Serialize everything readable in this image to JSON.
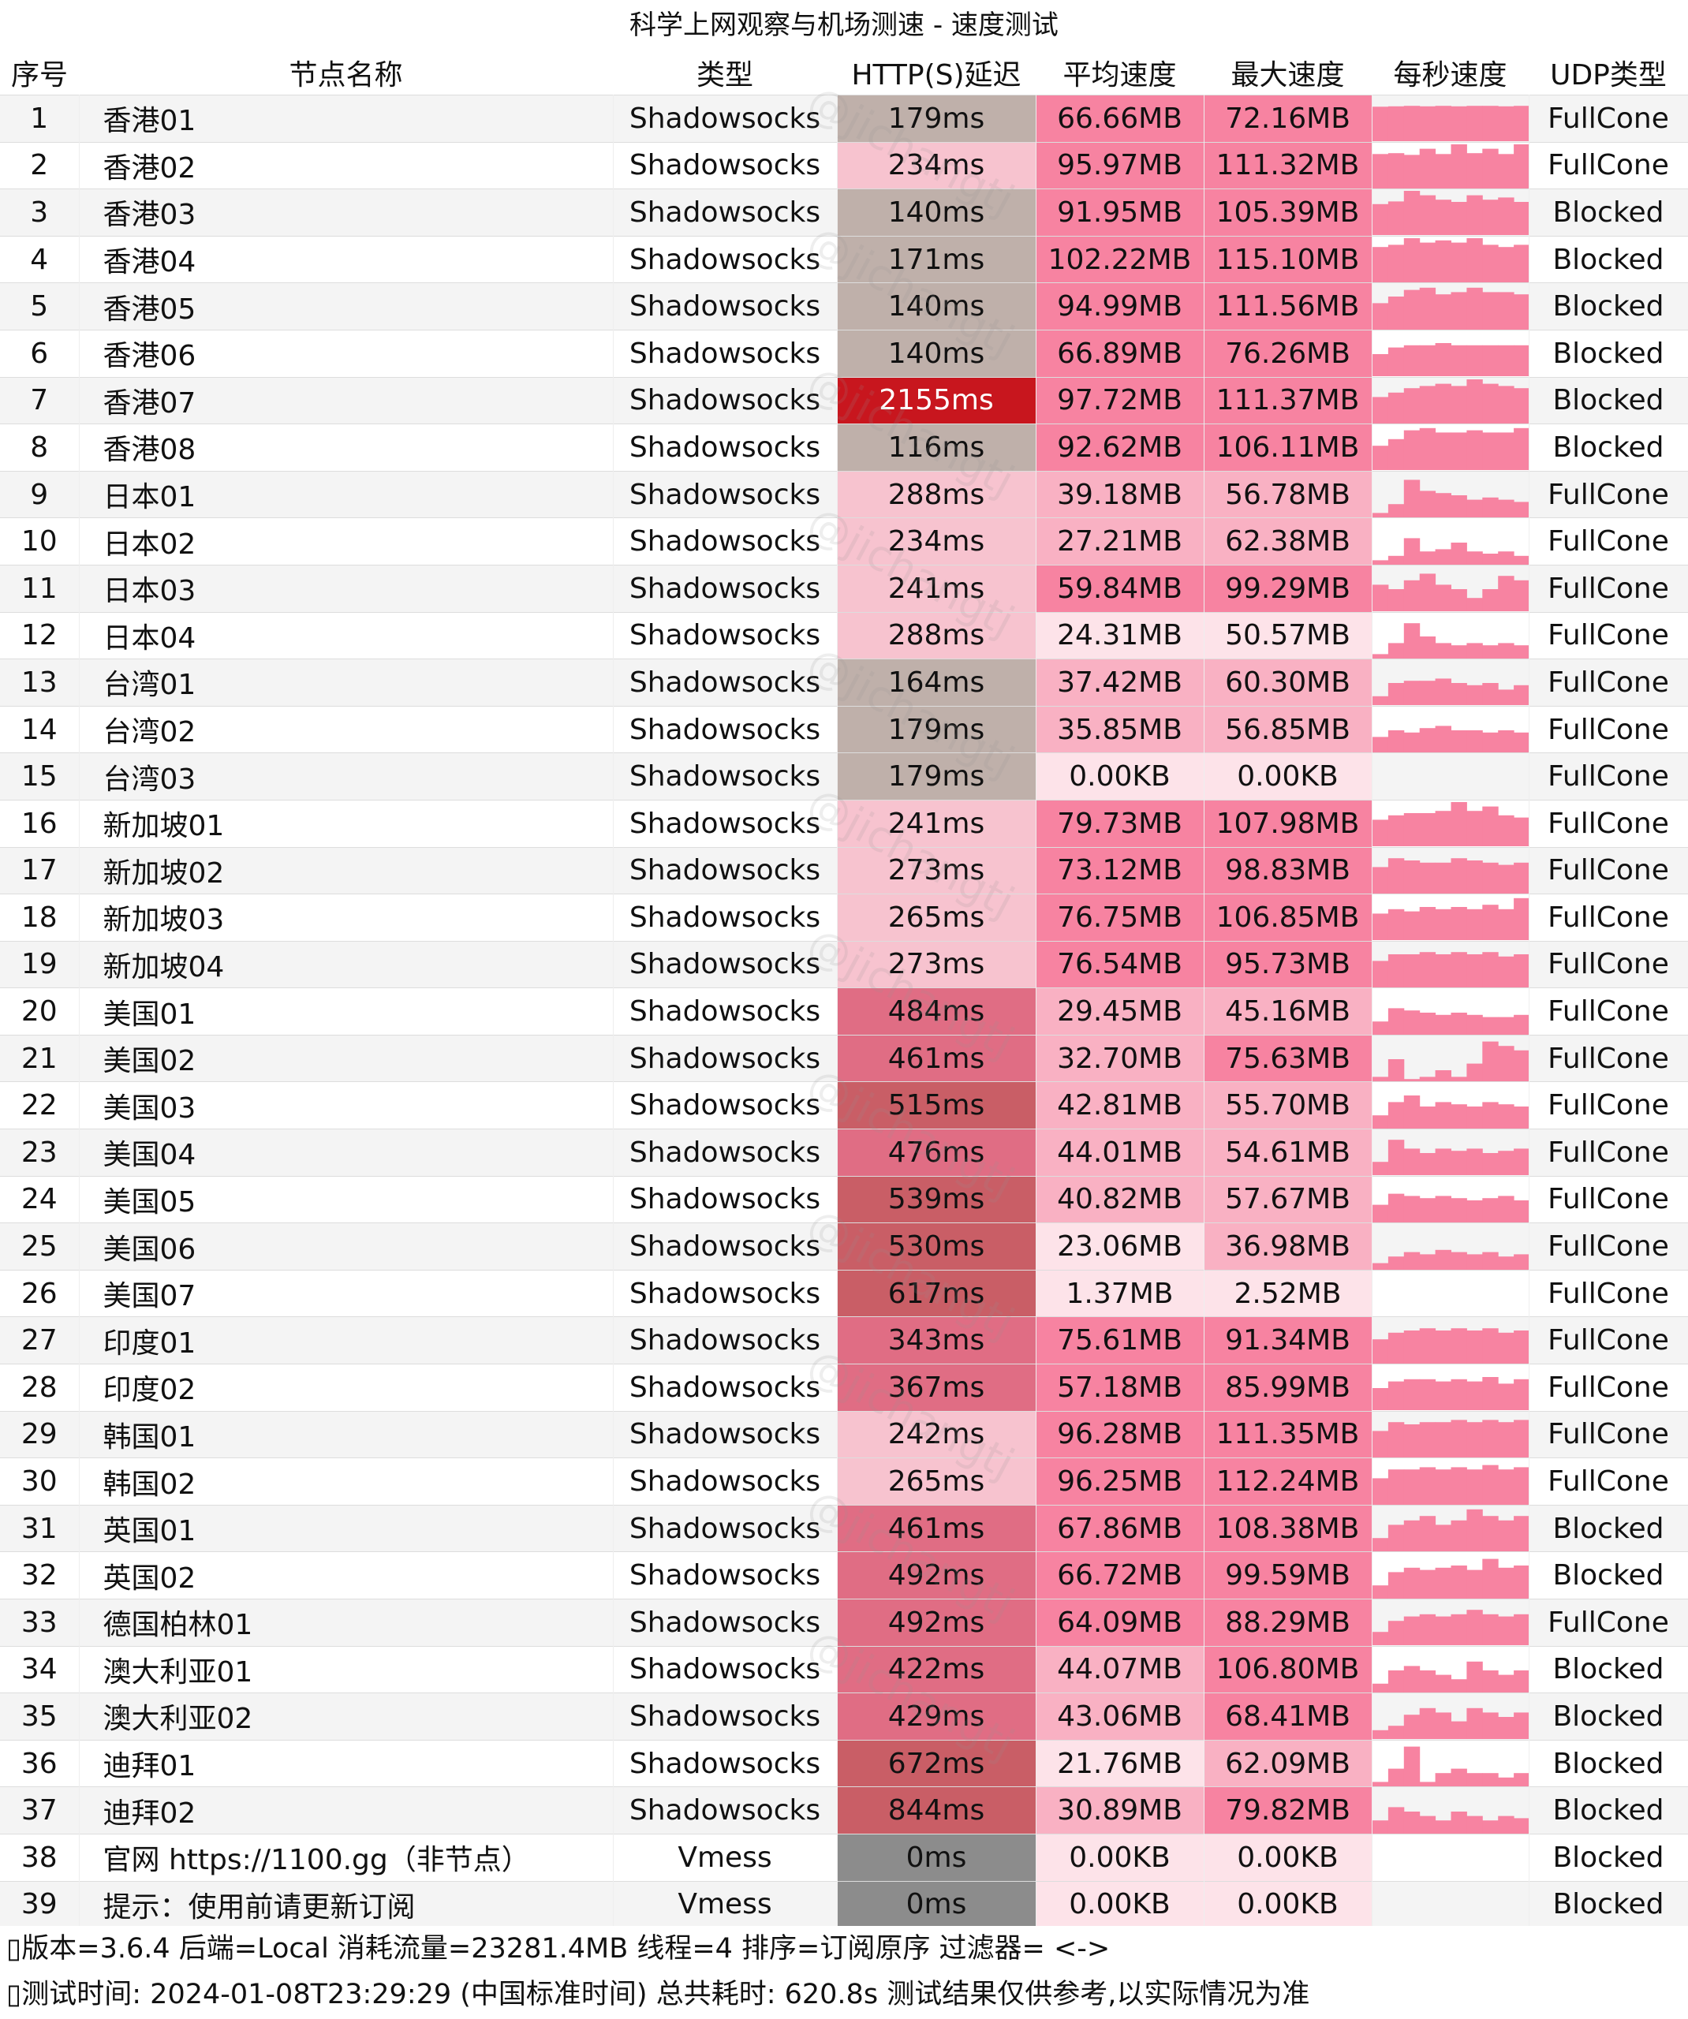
{
  "title": "科学上网观察与机场测速 - 速度测试",
  "columns": [
    "序号",
    "节点名称",
    "类型",
    "HTTP(S)延迟",
    "平均速度",
    "最大速度",
    "每秒速度",
    "UDP类型"
  ],
  "colors": {
    "latency_good": "#bfb0aa",
    "latency_ok": "#f7c3cf",
    "latency_mid": "#e06d84",
    "latency_high": "#c95e66",
    "latency_severe": "#c8161e",
    "latency_zero": "#8c8c8c",
    "speed_high": "#f783a1",
    "speed_mid": "#f9b1c3",
    "speed_low": "#fde3e9",
    "spark": "#f783a1"
  },
  "rows": [
    {
      "idx": "1",
      "name": "香港01",
      "type": "Shadowsocks",
      "latency": "179ms",
      "avg": "66.66MB",
      "max": "72.16MB",
      "udp": "FullCone",
      "lat_level": "good",
      "avg_level": "high",
      "max_level": "high",
      "spark": [
        0.78,
        0.79,
        0.8,
        0.79,
        0.8,
        0.79,
        0.8,
        0.8,
        0.79,
        0.8
      ]
    },
    {
      "idx": "2",
      "name": "香港02",
      "type": "Shadowsocks",
      "latency": "234ms",
      "avg": "95.97MB",
      "max": "111.32MB",
      "udp": "FullCone",
      "lat_level": "ok",
      "avg_level": "high",
      "max_level": "high",
      "spark": [
        0.78,
        0.8,
        0.76,
        0.9,
        0.78,
        1,
        0.8,
        0.9,
        0.78,
        1
      ]
    },
    {
      "idx": "3",
      "name": "香港03",
      "type": "Shadowsocks",
      "latency": "140ms",
      "avg": "91.95MB",
      "max": "105.39MB",
      "udp": "Blocked",
      "lat_level": "good",
      "avg_level": "high",
      "max_level": "high",
      "spark": [
        0.7,
        0.76,
        1,
        0.9,
        0.8,
        0.75,
        0.9,
        0.8,
        0.85,
        0.75
      ]
    },
    {
      "idx": "4",
      "name": "香港04",
      "type": "Shadowsocks",
      "latency": "171ms",
      "avg": "102.22MB",
      "max": "115.10MB",
      "udp": "Blocked",
      "lat_level": "good",
      "avg_level": "high",
      "max_level": "high",
      "spark": [
        0.8,
        0.85,
        1,
        0.9,
        0.95,
        0.9,
        1,
        0.85,
        0.8,
        0.85
      ]
    },
    {
      "idx": "5",
      "name": "香港05",
      "type": "Shadowsocks",
      "latency": "140ms",
      "avg": "94.99MB",
      "max": "111.56MB",
      "udp": "Blocked",
      "lat_level": "good",
      "avg_level": "high",
      "max_level": "high",
      "spark": [
        0.6,
        0.75,
        0.9,
        0.95,
        0.8,
        0.85,
        0.95,
        0.85,
        0.85,
        0.8
      ]
    },
    {
      "idx": "6",
      "name": "香港06",
      "type": "Shadowsocks",
      "latency": "140ms",
      "avg": "66.89MB",
      "max": "76.26MB",
      "udp": "Blocked",
      "lat_level": "good",
      "avg_level": "high",
      "max_level": "high",
      "spark": [
        0.5,
        0.65,
        0.7,
        0.7,
        0.75,
        0.7,
        0.7,
        0.7,
        0.7,
        0.7
      ]
    },
    {
      "idx": "7",
      "name": "香港07",
      "type": "Shadowsocks",
      "latency": "2155ms",
      "avg": "97.72MB",
      "max": "111.37MB",
      "udp": "Blocked",
      "lat_level": "severe",
      "avg_level": "high",
      "max_level": "high",
      "spark": [
        0.6,
        0.7,
        0.8,
        0.85,
        0.9,
        0.85,
        1,
        0.9,
        0.85,
        0.8
      ]
    },
    {
      "idx": "8",
      "name": "香港08",
      "type": "Shadowsocks",
      "latency": "116ms",
      "avg": "92.62MB",
      "max": "106.11MB",
      "udp": "Blocked",
      "lat_level": "good",
      "avg_level": "high",
      "max_level": "high",
      "spark": [
        0.55,
        0.7,
        0.9,
        0.95,
        0.85,
        0.85,
        0.9,
        0.85,
        0.85,
        0.95
      ]
    },
    {
      "idx": "9",
      "name": "日本01",
      "type": "Shadowsocks",
      "latency": "288ms",
      "avg": "39.18MB",
      "max": "56.78MB",
      "udp": "FullCone",
      "lat_level": "ok",
      "avg_level": "mid",
      "max_level": "mid",
      "spark": [
        0.1,
        0.3,
        0.85,
        0.6,
        0.55,
        0.5,
        0.4,
        0.45,
        0.4,
        0.35
      ]
    },
    {
      "idx": "10",
      "name": "日本02",
      "type": "Shadowsocks",
      "latency": "234ms",
      "avg": "27.21MB",
      "max": "62.38MB",
      "udp": "FullCone",
      "lat_level": "ok",
      "avg_level": "mid",
      "max_level": "mid",
      "spark": [
        0.1,
        0.2,
        0.6,
        0.3,
        0.35,
        0.5,
        0.3,
        0.25,
        0.3,
        0.2
      ]
    },
    {
      "idx": "11",
      "name": "日本03",
      "type": "Shadowsocks",
      "latency": "241ms",
      "avg": "59.84MB",
      "max": "99.29MB",
      "udp": "FullCone",
      "lat_level": "ok",
      "avg_level": "high",
      "max_level": "high",
      "spark": [
        0.6,
        0.5,
        0.7,
        0.85,
        0.6,
        0.5,
        0.3,
        0.5,
        0.8,
        0.7
      ]
    },
    {
      "idx": "12",
      "name": "日本04",
      "type": "Shadowsocks",
      "latency": "288ms",
      "avg": "24.31MB",
      "max": "50.57MB",
      "udp": "FullCone",
      "lat_level": "ok",
      "avg_level": "low",
      "max_level": "low",
      "spark": [
        0.1,
        0.35,
        0.8,
        0.5,
        0.35,
        0.3,
        0.35,
        0.3,
        0.35,
        0.3
      ]
    },
    {
      "idx": "13",
      "name": "台湾01",
      "type": "Shadowsocks",
      "latency": "164ms",
      "avg": "37.42MB",
      "max": "60.30MB",
      "udp": "FullCone",
      "lat_level": "good",
      "avg_level": "mid",
      "max_level": "mid",
      "spark": [
        0.2,
        0.5,
        0.55,
        0.55,
        0.6,
        0.5,
        0.45,
        0.5,
        0.35,
        0.45
      ]
    },
    {
      "idx": "14",
      "name": "台湾02",
      "type": "Shadowsocks",
      "latency": "179ms",
      "avg": "35.85MB",
      "max": "56.85MB",
      "udp": "FullCone",
      "lat_level": "good",
      "avg_level": "mid",
      "max_level": "mid",
      "spark": [
        0.35,
        0.5,
        0.45,
        0.55,
        0.6,
        0.5,
        0.5,
        0.45,
        0.5,
        0.45
      ]
    },
    {
      "idx": "15",
      "name": "台湾03",
      "type": "Shadowsocks",
      "latency": "179ms",
      "avg": "0.00KB",
      "max": "0.00KB",
      "udp": "FullCone",
      "lat_level": "good",
      "avg_level": "low",
      "max_level": "low",
      "spark": [
        0,
        0,
        0,
        0,
        0,
        0,
        0,
        0,
        0,
        0
      ]
    },
    {
      "idx": "16",
      "name": "新加坡01",
      "type": "Shadowsocks",
      "latency": "241ms",
      "avg": "79.73MB",
      "max": "107.98MB",
      "udp": "FullCone",
      "lat_level": "ok",
      "avg_level": "high",
      "max_level": "high",
      "spark": [
        0.6,
        0.7,
        0.75,
        0.75,
        0.8,
        1,
        0.8,
        0.9,
        0.7,
        0.65
      ]
    },
    {
      "idx": "17",
      "name": "新加坡02",
      "type": "Shadowsocks",
      "latency": "273ms",
      "avg": "73.12MB",
      "max": "98.83MB",
      "udp": "FullCone",
      "lat_level": "ok",
      "avg_level": "high",
      "max_level": "high",
      "spark": [
        0.6,
        0.8,
        0.75,
        0.7,
        0.7,
        0.8,
        0.75,
        0.7,
        0.65,
        0.7
      ]
    },
    {
      "idx": "18",
      "name": "新加坡03",
      "type": "Shadowsocks",
      "latency": "265ms",
      "avg": "76.75MB",
      "max": "106.85MB",
      "udp": "FullCone",
      "lat_level": "ok",
      "avg_level": "high",
      "max_level": "high",
      "spark": [
        0.6,
        0.7,
        0.65,
        0.75,
        0.7,
        0.75,
        0.7,
        0.8,
        0.7,
        0.95
      ]
    },
    {
      "idx": "19",
      "name": "新加坡04",
      "type": "Shadowsocks",
      "latency": "273ms",
      "avg": "76.54MB",
      "max": "95.73MB",
      "udp": "FullCone",
      "lat_level": "ok",
      "avg_level": "high",
      "max_level": "high",
      "spark": [
        0.6,
        0.75,
        0.75,
        0.8,
        0.75,
        0.8,
        0.75,
        0.8,
        0.7,
        0.75
      ]
    },
    {
      "idx": "20",
      "name": "美国01",
      "type": "Shadowsocks",
      "latency": "484ms",
      "avg": "29.45MB",
      "max": "45.16MB",
      "udp": "FullCone",
      "lat_level": "mid",
      "avg_level": "mid",
      "max_level": "mid",
      "spark": [
        0.3,
        0.6,
        0.55,
        0.5,
        0.45,
        0.5,
        0.45,
        0.4,
        0.4,
        0.45
      ]
    },
    {
      "idx": "21",
      "name": "美国02",
      "type": "Shadowsocks",
      "latency": "461ms",
      "avg": "32.70MB",
      "max": "75.63MB",
      "udp": "FullCone",
      "lat_level": "mid",
      "avg_level": "mid",
      "max_level": "high",
      "spark": [
        0.1,
        0.5,
        0.05,
        0.1,
        0.25,
        0.1,
        0.4,
        0.9,
        0.8,
        0.7
      ]
    },
    {
      "idx": "22",
      "name": "美国03",
      "type": "Shadowsocks",
      "latency": "515ms",
      "avg": "42.81MB",
      "max": "55.70MB",
      "udp": "FullCone",
      "lat_level": "high",
      "avg_level": "mid",
      "max_level": "mid",
      "spark": [
        0.3,
        0.6,
        0.75,
        0.5,
        0.6,
        0.55,
        0.5,
        0.6,
        0.55,
        0.5
      ]
    },
    {
      "idx": "23",
      "name": "美国04",
      "type": "Shadowsocks",
      "latency": "476ms",
      "avg": "44.01MB",
      "max": "54.61MB",
      "udp": "FullCone",
      "lat_level": "mid",
      "avg_level": "mid",
      "max_level": "mid",
      "spark": [
        0.3,
        0.8,
        0.6,
        0.5,
        0.6,
        0.55,
        0.6,
        0.5,
        0.55,
        0.6
      ]
    },
    {
      "idx": "24",
      "name": "美国05",
      "type": "Shadowsocks",
      "latency": "539ms",
      "avg": "40.82MB",
      "max": "57.67MB",
      "udp": "FullCone",
      "lat_level": "high",
      "avg_level": "mid",
      "max_level": "mid",
      "spark": [
        0.4,
        0.65,
        0.6,
        0.55,
        0.6,
        0.55,
        0.5,
        0.55,
        0.6,
        0.5
      ]
    },
    {
      "idx": "25",
      "name": "美国06",
      "type": "Shadowsocks",
      "latency": "530ms",
      "avg": "23.06MB",
      "max": "36.98MB",
      "udp": "FullCone",
      "lat_level": "high",
      "avg_level": "low",
      "max_level": "mid",
      "spark": [
        0.15,
        0.3,
        0.4,
        0.35,
        0.45,
        0.4,
        0.35,
        0.4,
        0.3,
        0.35
      ]
    },
    {
      "idx": "26",
      "name": "美国07",
      "type": "Shadowsocks",
      "latency": "617ms",
      "avg": "1.37MB",
      "max": "2.52MB",
      "udp": "FullCone",
      "lat_level": "high",
      "avg_level": "low",
      "max_level": "low",
      "spark": [
        0,
        0,
        0,
        0,
        0,
        0,
        0,
        0,
        0,
        0
      ]
    },
    {
      "idx": "27",
      "name": "印度01",
      "type": "Shadowsocks",
      "latency": "343ms",
      "avg": "75.61MB",
      "max": "91.34MB",
      "udp": "FullCone",
      "lat_level": "mid",
      "avg_level": "high",
      "max_level": "high",
      "spark": [
        0.55,
        0.7,
        0.75,
        0.8,
        0.75,
        0.8,
        0.75,
        0.8,
        0.7,
        0.75
      ]
    },
    {
      "idx": "28",
      "name": "印度02",
      "type": "Shadowsocks",
      "latency": "367ms",
      "avg": "57.18MB",
      "max": "85.99MB",
      "udp": "FullCone",
      "lat_level": "mid",
      "avg_level": "high",
      "max_level": "high",
      "spark": [
        0.5,
        0.65,
        0.7,
        0.7,
        0.65,
        0.7,
        0.65,
        0.75,
        0.6,
        0.7
      ]
    },
    {
      "idx": "29",
      "name": "韩国01",
      "type": "Shadowsocks",
      "latency": "242ms",
      "avg": "96.28MB",
      "max": "111.35MB",
      "udp": "FullCone",
      "lat_level": "ok",
      "avg_level": "high",
      "max_level": "high",
      "spark": [
        0.6,
        0.8,
        0.75,
        0.8,
        0.8,
        0.85,
        0.8,
        0.85,
        0.8,
        0.85
      ]
    },
    {
      "idx": "30",
      "name": "韩国02",
      "type": "Shadowsocks",
      "latency": "265ms",
      "avg": "96.25MB",
      "max": "112.24MB",
      "udp": "FullCone",
      "lat_level": "ok",
      "avg_level": "high",
      "max_level": "high",
      "spark": [
        0.6,
        0.8,
        0.8,
        0.85,
        0.8,
        0.85,
        0.8,
        0.9,
        0.8,
        0.85
      ]
    },
    {
      "idx": "31",
      "name": "英国01",
      "type": "Shadowsocks",
      "latency": "461ms",
      "avg": "67.86MB",
      "max": "108.38MB",
      "udp": "Blocked",
      "lat_level": "mid",
      "avg_level": "high",
      "max_level": "high",
      "spark": [
        0.3,
        0.6,
        0.7,
        0.8,
        0.6,
        0.7,
        0.95,
        0.8,
        0.7,
        0.8
      ]
    },
    {
      "idx": "32",
      "name": "英国02",
      "type": "Shadowsocks",
      "latency": "492ms",
      "avg": "66.72MB",
      "max": "99.59MB",
      "udp": "Blocked",
      "lat_level": "mid",
      "avg_level": "high",
      "max_level": "high",
      "spark": [
        0.3,
        0.6,
        0.7,
        0.65,
        0.7,
        0.75,
        0.65,
        0.9,
        0.7,
        0.75
      ]
    },
    {
      "idx": "33",
      "name": "德国柏林01",
      "type": "Shadowsocks",
      "latency": "492ms",
      "avg": "64.09MB",
      "max": "88.29MB",
      "udp": "FullCone",
      "lat_level": "mid",
      "avg_level": "high",
      "max_level": "high",
      "spark": [
        0.3,
        0.55,
        0.65,
        0.7,
        0.65,
        0.7,
        0.8,
        0.7,
        0.65,
        0.7
      ]
    },
    {
      "idx": "34",
      "name": "澳大利亚01",
      "type": "Shadowsocks",
      "latency": "422ms",
      "avg": "44.07MB",
      "max": "106.80MB",
      "udp": "Blocked",
      "lat_level": "mid",
      "avg_level": "mid",
      "max_level": "high",
      "spark": [
        0.2,
        0.5,
        0.6,
        0.5,
        0.4,
        0.3,
        0.7,
        0.5,
        0.4,
        0.5
      ]
    },
    {
      "idx": "35",
      "name": "澳大利亚02",
      "type": "Shadowsocks",
      "latency": "429ms",
      "avg": "43.06MB",
      "max": "68.41MB",
      "udp": "Blocked",
      "lat_level": "mid",
      "avg_level": "mid",
      "max_level": "high",
      "spark": [
        0.2,
        0.3,
        0.55,
        0.7,
        0.6,
        0.4,
        0.7,
        0.6,
        0.5,
        0.6
      ]
    },
    {
      "idx": "36",
      "name": "迪拜01",
      "type": "Shadowsocks",
      "latency": "672ms",
      "avg": "21.76MB",
      "max": "62.09MB",
      "udp": "Blocked",
      "lat_level": "high",
      "avg_level": "low",
      "max_level": "mid",
      "spark": [
        0.1,
        0.4,
        0.9,
        0.1,
        0.3,
        0.4,
        0.3,
        0.3,
        0.2,
        0.3
      ]
    },
    {
      "idx": "37",
      "name": "迪拜02",
      "type": "Shadowsocks",
      "latency": "844ms",
      "avg": "30.89MB",
      "max": "79.82MB",
      "udp": "Blocked",
      "lat_level": "high",
      "avg_level": "mid",
      "max_level": "high",
      "spark": [
        0.3,
        0.6,
        0.5,
        0.4,
        0.3,
        0.5,
        0.4,
        0.3,
        0.4,
        0.35
      ]
    },
    {
      "idx": "38",
      "name": "官网 https://1100.gg（非节点）",
      "type": "Vmess",
      "latency": "0ms",
      "avg": "0.00KB",
      "max": "0.00KB",
      "udp": "Blocked",
      "lat_level": "zero",
      "avg_level": "low",
      "max_level": "low",
      "spark": [
        0,
        0,
        0,
        0,
        0,
        0,
        0,
        0,
        0,
        0
      ]
    },
    {
      "idx": "39",
      "name": "提示：使用前请更新订阅",
      "type": "Vmess",
      "latency": "0ms",
      "avg": "0.00KB",
      "max": "0.00KB",
      "udp": "Blocked",
      "lat_level": "zero",
      "avg_level": "low",
      "max_level": "low",
      "spark": [
        0,
        0,
        0,
        0,
        0,
        0,
        0,
        0,
        0,
        0
      ]
    }
  ],
  "footer": {
    "line1": "▯版本=3.6.4  后端=Local  消耗流量=23281.4MB   线程=4  排序=订阅原序  过滤器= <->",
    "line2": "▯测试时间: 2024-01-08T23:29:29 (中国标准时间) 总共耗时: 620.8s 测试结果仅供参考,以实际情况为准"
  },
  "watermark": "@jichangtj"
}
